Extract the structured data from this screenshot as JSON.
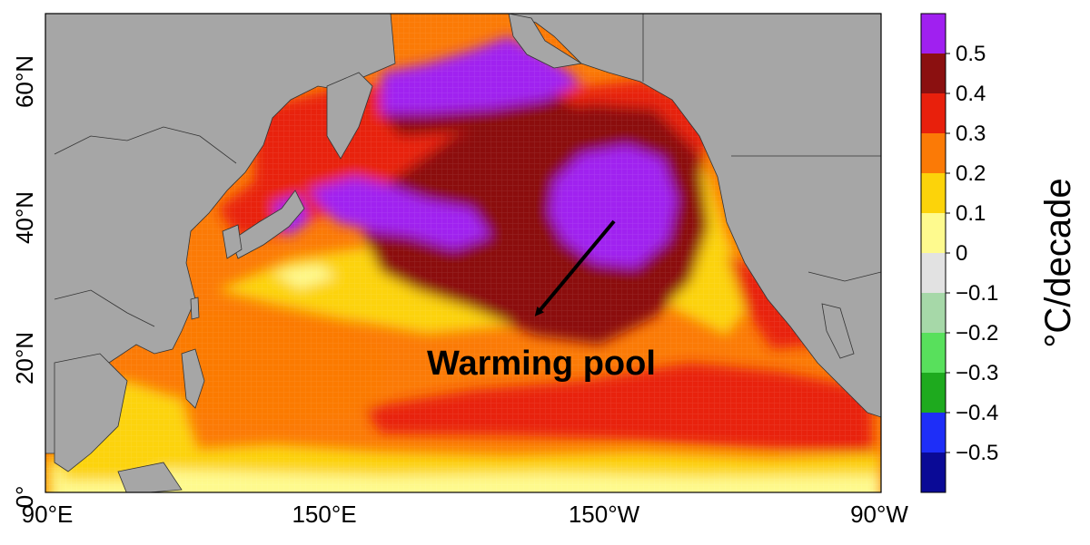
{
  "map": {
    "annotation": "Warming pool",
    "lat_ticks": [
      "0°",
      "20°N",
      "40°N",
      "60°N"
    ],
    "lon_ticks": [
      "90°E",
      "150°E",
      "150°W",
      "90°W"
    ],
    "land_color": "#a6a6a6"
  },
  "colorbar": {
    "unit_label": "°C/decade",
    "tick_labels": [
      "0.5",
      "0.4",
      "0.3",
      "0.2",
      "0.1",
      "0",
      "−0.1",
      "−0.2",
      "−0.3",
      "−0.4",
      "−0.5"
    ],
    "colors": [
      "#a020f0",
      "#8b1010",
      "#e8200c",
      "#fb7a06",
      "#fcd30a",
      "#fefa8e",
      "#e2e2e2",
      "#a6d8a8",
      "#58e05c",
      "#1eaa1e",
      "#1e2ef8",
      "#0a0a96"
    ]
  }
}
